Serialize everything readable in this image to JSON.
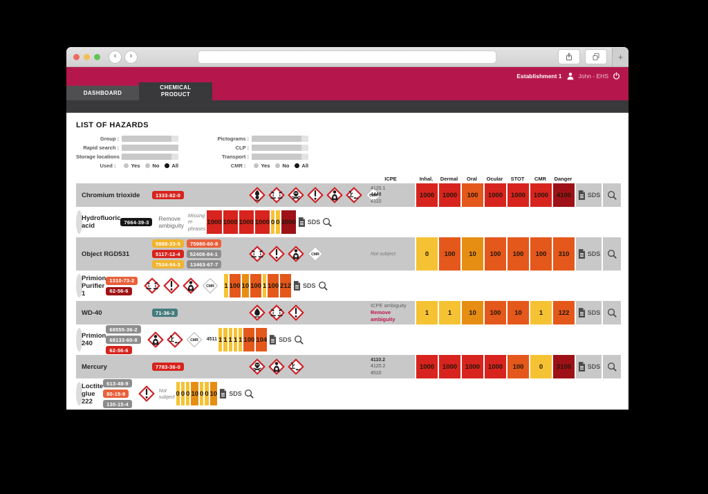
{
  "window": {
    "browser": {
      "url_value": "",
      "back_label": "‹",
      "forward_label": "›",
      "new_tab_label": "+"
    },
    "app_header": {
      "establishment": "Establishment 1",
      "user": "John - EHS"
    },
    "nav_tabs": [
      {
        "label": "DASHBOARD",
        "active": false
      },
      {
        "label": "CHEMICAL PRODUCT",
        "active": true
      }
    ]
  },
  "page": {
    "title": "LIST OF HAZARDS",
    "filters": {
      "left": [
        {
          "label": "Group :",
          "control": "select",
          "value": ""
        },
        {
          "label": "Rapid search :",
          "control": "input",
          "value": ""
        },
        {
          "label": "Storage locations :",
          "control": "select",
          "value": ""
        }
      ],
      "right": [
        {
          "label": "Pictograms :",
          "control": "select",
          "value": ""
        },
        {
          "label": "CLP :",
          "control": "select",
          "value": ""
        },
        {
          "label": "Transport :",
          "control": "select",
          "value": ""
        }
      ],
      "used": {
        "label": "Used :",
        "options": [
          "Yes",
          "No",
          "All"
        ],
        "selected": "All"
      },
      "cmr": {
        "label": "CMR :",
        "options": [
          "Yes",
          "No",
          "All"
        ],
        "selected": "All"
      }
    },
    "table": {
      "icpe_header": "ICPE",
      "value_columns": [
        "Inhal.",
        "Dermal",
        "Oral",
        "Ocular",
        "STOT",
        "CMR",
        "Danger"
      ],
      "sds_label": "SDS",
      "rows": [
        {
          "name": "Chromium trioxide",
          "cas": [
            {
              "value": "1333-82-0",
              "color": "red"
            }
          ],
          "pictograms": [
            "oxidizer",
            "corrosion",
            "skull",
            "exclamation",
            "health-hazard",
            "environment",
            "cmr"
          ],
          "picto_note": "",
          "icpe": [
            {
              "text": "4120.1",
              "style": ""
            },
            {
              "text": "4440",
              "style": "bold"
            },
            {
              "text": "4510",
              "style": ""
            }
          ],
          "values": [
            {
              "v": "1000",
              "c": "red"
            },
            {
              "v": "1000",
              "c": "red"
            },
            {
              "v": "100",
              "c": "orange"
            },
            {
              "v": "1000",
              "c": "red"
            },
            {
              "v": "1000",
              "c": "red"
            },
            {
              "v": "1000",
              "c": "red"
            },
            {
              "v": "4100",
              "c": "darkred"
            }
          ]
        },
        {
          "name": "Hydrofluoric acid",
          "cas": [
            {
              "value": "7664-39-3",
              "color": "black"
            }
          ],
          "pictograms": [],
          "picto_note": "Remove ambiguity",
          "icpe": [
            {
              "text": "Missing H-phrases",
              "style": "italic"
            }
          ],
          "values": [
            {
              "v": "1000",
              "c": "red"
            },
            {
              "v": "1000",
              "c": "red"
            },
            {
              "v": "1000",
              "c": "red"
            },
            {
              "v": "1000",
              "c": "red"
            },
            {
              "v": "0",
              "c": "yellow"
            },
            {
              "v": "0",
              "c": "yellow"
            },
            {
              "v": "3000",
              "c": "darkred"
            }
          ]
        },
        {
          "name": "Object RGD531",
          "cas": [
            {
              "value": "5888-33-5",
              "color": "yellow"
            },
            {
              "value": "75980-60-8",
              "color": "orange"
            },
            {
              "value": "5117-12-4",
              "color": "red"
            },
            {
              "value": "52408-84-1",
              "color": "gray"
            },
            {
              "value": "7534-94-3",
              "color": "yellow"
            },
            {
              "value": "13463-67-7",
              "color": "gray"
            }
          ],
          "pictograms": [
            "corrosion",
            "exclamation",
            "health-hazard",
            "cmr"
          ],
          "picto_note": "",
          "icpe": [
            {
              "text": "Not subject",
              "style": "italic"
            }
          ],
          "values": [
            {
              "v": "0",
              "c": "yellow"
            },
            {
              "v": "100",
              "c": "orange"
            },
            {
              "v": "10",
              "c": "amber"
            },
            {
              "v": "100",
              "c": "orange"
            },
            {
              "v": "100",
              "c": "orange"
            },
            {
              "v": "100",
              "c": "orange"
            },
            {
              "v": "310",
              "c": "orange"
            }
          ]
        },
        {
          "name": "Primion Purifier 1",
          "cas": [
            {
              "value": "1310-73-2",
              "color": "orange"
            },
            {
              "value": "62-56-6",
              "color": "darkred"
            }
          ],
          "pictograms": [
            "corrosion",
            "exclamation",
            "health-hazard",
            "cmr"
          ],
          "picto_note": "",
          "icpe": [],
          "values": [
            {
              "v": "1",
              "c": "yellow"
            },
            {
              "v": "100",
              "c": "orange"
            },
            {
              "v": "10",
              "c": "amber"
            },
            {
              "v": "100",
              "c": "orange"
            },
            {
              "v": "1",
              "c": "yellow"
            },
            {
              "v": "100",
              "c": "orange"
            },
            {
              "v": "212",
              "c": "orange"
            }
          ]
        },
        {
          "name": "WD-40",
          "cas": [
            {
              "value": "71-36-3",
              "color": "teal"
            }
          ],
          "pictograms": [
            "flame",
            "corrosion",
            "exclamation"
          ],
          "picto_note": "",
          "icpe": [
            {
              "text": "ICPE ambiguity",
              "style": "gray"
            },
            {
              "text": "Remove ambiguity",
              "style": "link"
            }
          ],
          "values": [
            {
              "v": "1",
              "c": "yellow"
            },
            {
              "v": "1",
              "c": "yellow"
            },
            {
              "v": "10",
              "c": "amber"
            },
            {
              "v": "100",
              "c": "orange"
            },
            {
              "v": "10",
              "c": "orange"
            },
            {
              "v": "1",
              "c": "yellow"
            },
            {
              "v": "122",
              "c": "orange"
            }
          ]
        },
        {
          "name": "Primion 240",
          "cas": [
            {
              "value": "68555-36-2",
              "color": "gray"
            },
            {
              "value": "68133-60-8",
              "color": "gray"
            },
            {
              "value": "62-56-6",
              "color": "red"
            }
          ],
          "pictograms": [
            "health-hazard",
            "environment",
            "cmr"
          ],
          "picto_note": "",
          "icpe": [
            {
              "text": "4511",
              "style": "bold"
            }
          ],
          "values": [
            {
              "v": "1",
              "c": "yellow"
            },
            {
              "v": "1",
              "c": "yellow"
            },
            {
              "v": "1",
              "c": "yellow"
            },
            {
              "v": "1",
              "c": "yellow"
            },
            {
              "v": "1",
              "c": "yellow"
            },
            {
              "v": "100",
              "c": "orange"
            },
            {
              "v": "104",
              "c": "orange"
            }
          ]
        },
        {
          "name": "Mercury",
          "cas": [
            {
              "value": "7783-36-0",
              "color": "red"
            }
          ],
          "pictograms": [
            "skull",
            "health-hazard",
            "environment"
          ],
          "picto_note": "",
          "icpe": [
            {
              "text": "4110.2",
              "style": "bold"
            },
            {
              "text": "4120.2",
              "style": ""
            },
            {
              "text": "4510",
              "style": ""
            }
          ],
          "values": [
            {
              "v": "1000",
              "c": "red"
            },
            {
              "v": "1000",
              "c": "red"
            },
            {
              "v": "1000",
              "c": "red"
            },
            {
              "v": "1000",
              "c": "red"
            },
            {
              "v": "100",
              "c": "orange"
            },
            {
              "v": "0",
              "c": "yellow"
            },
            {
              "v": "3100",
              "c": "darkred"
            }
          ]
        },
        {
          "name": "Loctite glue 222",
          "cas": [
            {
              "value": "613-48-9",
              "color": "gray"
            },
            {
              "value": "80-15-9",
              "color": "orange"
            },
            {
              "value": "130-15-4",
              "color": "gray"
            }
          ],
          "pictograms": [
            "exclamation"
          ],
          "picto_note": "",
          "icpe": [
            {
              "text": "Not subject",
              "style": "italic"
            }
          ],
          "values": [
            {
              "v": "0",
              "c": "yellow"
            },
            {
              "v": "0",
              "c": "yellow"
            },
            {
              "v": "0",
              "c": "yellow"
            },
            {
              "v": "10",
              "c": "amber"
            },
            {
              "v": "0",
              "c": "yellow"
            },
            {
              "v": "0",
              "c": "yellow"
            },
            {
              "v": "10",
              "c": "amber"
            }
          ]
        }
      ]
    }
  },
  "palette": {
    "accent_pink": "#b5174d",
    "cell": {
      "yellow": "#f5c233",
      "amber": "#e68e13",
      "orange": "#e4581b",
      "red": "#d8241e",
      "darkred": "#9e1217"
    },
    "badge": {
      "red": "#d7231d",
      "black": "#161616",
      "yellow": "#f0b42c",
      "orange": "#e8603b",
      "gray": "#8d8d8d",
      "darkred": "#9f1317",
      "teal": "#477c7e"
    },
    "pictogram_border": "#cf2127",
    "cmr_label": "CMR"
  }
}
